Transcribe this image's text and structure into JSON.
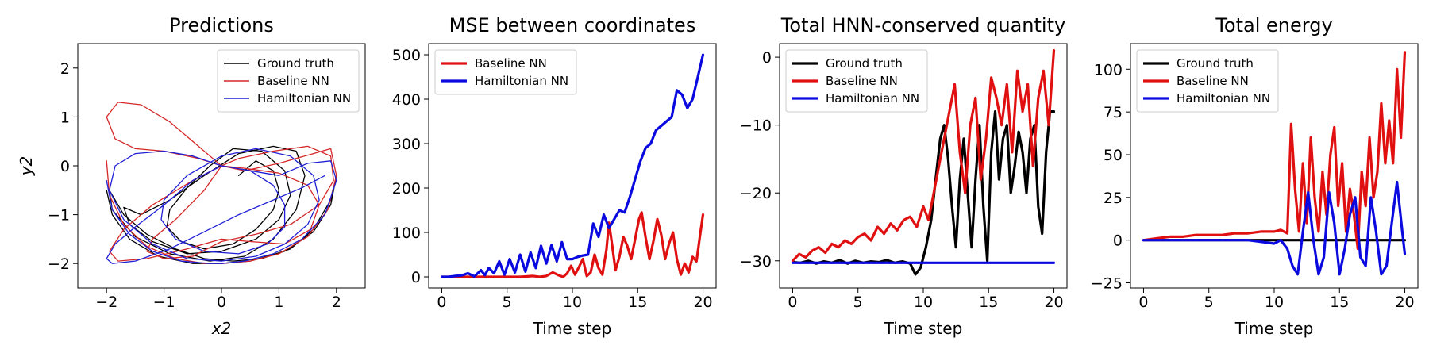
{
  "chart_data": [
    {
      "type": "line",
      "title": "Predictions",
      "xlabel": "x2",
      "ylabel": "y2",
      "xlim": [
        -2.5,
        2.5
      ],
      "ylim": [
        -2.5,
        2.5
      ],
      "xticks": [
        -2,
        -1,
        0,
        1,
        2
      ],
      "yticks": [
        -2,
        -1,
        0,
        1,
        2
      ],
      "legend_position": "top-right",
      "series": [
        {
          "name": "Ground truth",
          "color": "#000000",
          "x": [
            -2.0,
            -1.9,
            -1.6,
            -1.1,
            -0.5,
            0.0,
            0.5,
            1.1,
            1.6,
            1.9,
            2.0,
            1.9,
            1.6,
            1.2,
            0.7,
            0.2,
            -0.3,
            -0.8,
            -1.3,
            -1.7,
            -1.95,
            -1.9,
            -1.5,
            -0.9,
            -0.2,
            0.4,
            0.9,
            1.3,
            1.45,
            1.3,
            0.9,
            0.3,
            -0.3,
            -0.9,
            -1.4,
            -1.7,
            -1.6,
            -1.2,
            -0.6,
            0.0,
            0.6,
            1.0,
            1.2,
            1.1,
            0.7,
            0.2,
            -0.2,
            -0.6,
            -0.9,
            -0.95,
            -0.7,
            -0.3,
            0.2,
            0.6,
            0.9,
            1.0,
            0.9,
            0.6,
            0.3
          ],
          "y": [
            -0.5,
            -1.0,
            -1.5,
            -1.85,
            -2.0,
            -2.0,
            -1.95,
            -1.75,
            -1.35,
            -0.8,
            -0.2,
            -0.7,
            -1.3,
            -1.7,
            -1.9,
            -1.95,
            -1.9,
            -1.7,
            -1.4,
            -1.0,
            -0.5,
            -0.9,
            -1.45,
            -1.8,
            -1.95,
            -1.85,
            -1.5,
            -0.9,
            -0.2,
            0.3,
            0.4,
            0.25,
            -0.2,
            -0.7,
            -1.0,
            -0.85,
            -1.2,
            -1.55,
            -1.8,
            -1.75,
            -1.5,
            -1.1,
            -0.6,
            -0.1,
            0.3,
            0.35,
            0.0,
            -0.45,
            -0.9,
            -1.25,
            -1.55,
            -1.7,
            -1.6,
            -1.3,
            -0.9,
            -0.5,
            -0.1,
            0.1,
            -0.2
          ]
        },
        {
          "name": "Baseline NN",
          "color": "#d62728",
          "x": [
            -2.0,
            -1.95,
            -1.7,
            -1.3,
            -0.8,
            -0.3,
            0.0,
            0.5,
            1.0,
            1.5,
            1.85,
            2.0,
            1.9,
            1.6,
            1.0,
            0.4,
            0.0,
            -0.4,
            -0.9,
            -1.4,
            -1.8,
            -2.0,
            -1.85,
            -1.5,
            -1.0,
            -0.4,
            0.0,
            -0.3,
            -0.8,
            -1.2,
            -1.3,
            -1.0,
            -0.5,
            0.0,
            0.6,
            1.2,
            1.7,
            1.95,
            1.9,
            1.5,
            0.9,
            0.3,
            0.0,
            -0.5,
            -1.2,
            -1.7,
            -1.95,
            -1.8,
            -1.3,
            -0.6,
            0.0,
            0.5,
            1.1,
            1.55,
            1.7,
            1.5,
            1.0,
            0.4,
            0.0
          ],
          "y": [
            0.1,
            -0.6,
            -1.2,
            -1.65,
            -1.9,
            -2.0,
            -2.0,
            -1.95,
            -1.8,
            -1.45,
            -0.9,
            -0.2,
            0.35,
            0.25,
            0.05,
            -0.1,
            0.0,
            0.4,
            0.9,
            1.25,
            1.3,
            1.0,
            0.55,
            0.35,
            0.3,
            0.15,
            0.0,
            -0.5,
            -1.1,
            -1.5,
            -1.75,
            -1.9,
            -1.85,
            -1.55,
            -1.4,
            -1.2,
            -0.8,
            -0.3,
            0.2,
            0.4,
            0.3,
            0.15,
            0.0,
            -0.3,
            -0.8,
            -1.3,
            -1.75,
            -1.95,
            -1.9,
            -1.7,
            -1.5,
            -1.55,
            -1.6,
            -1.3,
            -0.8,
            -0.4,
            -0.15,
            -0.05,
            0.0
          ]
        },
        {
          "name": "Hamiltonian NN",
          "color": "#1f1fd6",
          "x": [
            -2.0,
            -1.9,
            -1.6,
            -1.2,
            -0.7,
            -0.2,
            0.0,
            0.4,
            0.9,
            1.4,
            1.8,
            2.0,
            1.9,
            1.5,
            1.0,
            0.5,
            0.0,
            -0.5,
            -1.0,
            -1.5,
            -1.85,
            -1.95,
            -1.7,
            -1.2,
            -0.6,
            0.0,
            0.6,
            1.1,
            1.5,
            1.7,
            1.6,
            1.2,
            0.6,
            0.0,
            -0.6,
            -1.0,
            -1.05,
            -0.8,
            -0.3,
            0.3,
            0.8,
            1.1,
            1.1,
            0.9,
            0.5,
            0.0,
            -0.5,
            -1.0,
            -1.5,
            -1.85,
            -2.0,
            -1.9,
            -1.5,
            -0.9,
            -0.3,
            0.3,
            0.9,
            1.4,
            1.8
          ],
          "y": [
            -0.3,
            -0.9,
            -1.4,
            -1.75,
            -1.95,
            -2.0,
            -2.0,
            -1.95,
            -1.8,
            -1.5,
            -1.0,
            -0.3,
            0.1,
            0.05,
            -0.2,
            -0.1,
            0.0,
            0.2,
            0.3,
            0.25,
            0.0,
            -0.5,
            -1.1,
            -1.6,
            -1.9,
            -1.95,
            -1.85,
            -1.6,
            -1.2,
            -0.7,
            -0.2,
            0.2,
            0.35,
            0.2,
            -0.2,
            -0.7,
            -1.1,
            -1.5,
            -1.75,
            -1.8,
            -1.6,
            -1.25,
            -0.8,
            -0.4,
            -0.1,
            0.0,
            -0.3,
            -0.8,
            -1.25,
            -1.6,
            -1.9,
            -2.0,
            -1.95,
            -1.7,
            -1.35,
            -1.0,
            -0.7,
            -0.45,
            -0.2
          ]
        }
      ]
    },
    {
      "type": "line",
      "title": "MSE between coordinates",
      "xlabel": "Time step",
      "ylabel": "",
      "xlim": [
        -1,
        21
      ],
      "ylim": [
        -25,
        525
      ],
      "xticks": [
        0,
        5,
        10,
        15,
        20
      ],
      "yticks": [
        0,
        100,
        200,
        300,
        400,
        500
      ],
      "legend_position": "top-left",
      "series": [
        {
          "name": "Baseline NN",
          "color": "#e01010",
          "x": [
            0,
            1,
            2,
            3,
            4,
            5,
            6,
            7,
            7.5,
            8,
            8.5,
            9,
            9.3,
            9.6,
            9.9,
            10.2,
            10.5,
            10.8,
            11.1,
            11.4,
            11.7,
            12.0,
            12.3,
            12.6,
            12.8,
            13.0,
            13.3,
            13.6,
            13.9,
            14.2,
            14.5,
            14.8,
            15.1,
            15.3,
            15.6,
            15.9,
            16.2,
            16.5,
            16.8,
            17.1,
            17.4,
            17.7,
            18.0,
            18.3,
            18.6,
            18.9,
            19.2,
            19.5,
            19.8,
            20.0
          ],
          "y": [
            0,
            0,
            0,
            0,
            0,
            0,
            0,
            2,
            0,
            2,
            10,
            3,
            0,
            8,
            25,
            5,
            22,
            40,
            2,
            10,
            50,
            20,
            5,
            60,
            122,
            80,
            15,
            45,
            90,
            70,
            40,
            85,
            130,
            145,
            90,
            40,
            80,
            130,
            95,
            40,
            75,
            100,
            40,
            5,
            30,
            10,
            45,
            35,
            100,
            140
          ]
        },
        {
          "name": "Hamiltonian NN",
          "color": "#0a0ae0",
          "x": [
            0,
            0.5,
            1,
            1.5,
            2,
            2.5,
            3,
            3.3,
            3.6,
            4,
            4.4,
            4.8,
            5.2,
            5.6,
            6.0,
            6.4,
            6.8,
            7.2,
            7.6,
            8.0,
            8.4,
            8.8,
            9.2,
            9.6,
            10.0,
            10.4,
            10.8,
            11.2,
            11.6,
            12.0,
            12.4,
            12.8,
            13.2,
            13.6,
            14.0,
            14.4,
            14.8,
            15.2,
            15.6,
            16.0,
            16.4,
            16.8,
            17.2,
            17.6,
            18.0,
            18.4,
            18.8,
            19.2,
            19.6,
            20.0
          ],
          "y": [
            0,
            0,
            2,
            3,
            8,
            1,
            15,
            4,
            20,
            8,
            35,
            5,
            40,
            10,
            50,
            12,
            55,
            20,
            70,
            30,
            72,
            35,
            78,
            40,
            40,
            45,
            48,
            50,
            120,
            90,
            140,
            110,
            130,
            150,
            145,
            180,
            220,
            260,
            290,
            300,
            330,
            340,
            350,
            360,
            420,
            410,
            380,
            400,
            450,
            500
          ]
        }
      ]
    },
    {
      "type": "line",
      "title": "Total HNN-conserved quantity",
      "xlabel": "Time step",
      "ylabel": "",
      "xlim": [
        -1,
        21
      ],
      "ylim": [
        -34,
        2
      ],
      "xticks": [
        0,
        5,
        10,
        15,
        20
      ],
      "yticks": [
        -30,
        -20,
        -10,
        0
      ],
      "legend_position": "top-left",
      "series": [
        {
          "name": "Ground truth",
          "color": "#000000",
          "x": [
            0,
            0.6,
            1.2,
            1.8,
            2.4,
            3.0,
            3.6,
            4.2,
            4.8,
            5.4,
            6.0,
            6.6,
            7.2,
            7.8,
            8.4,
            9.0,
            9.4,
            9.8,
            10.2,
            10.6,
            11.0,
            11.3,
            11.6,
            11.9,
            12.2,
            12.5,
            12.8,
            13.1,
            13.4,
            13.7,
            14.0,
            14.3,
            14.6,
            14.9,
            15.2,
            15.5,
            15.8,
            16.1,
            16.4,
            16.7,
            17.0,
            17.3,
            17.6,
            17.9,
            18.2,
            18.5,
            18.8,
            19.1,
            19.4,
            19.7,
            20.0
          ],
          "y": [
            -30.2,
            -30.3,
            -30.0,
            -30.4,
            -30.1,
            -30.3,
            -29.9,
            -30.4,
            -30.0,
            -30.3,
            -30.1,
            -30.2,
            -29.9,
            -30.3,
            -30.1,
            -30.4,
            -32,
            -31,
            -28,
            -24,
            -17,
            -12,
            -10,
            -15,
            -22,
            -28,
            -18,
            -12,
            -20,
            -28,
            -18,
            -10,
            -22,
            -30,
            -14,
            -8,
            -18,
            -12,
            -10,
            -20,
            -16,
            -11,
            -14,
            -20,
            -12,
            -10,
            -22,
            -26,
            -14,
            -8,
            -8
          ]
        },
        {
          "name": "Baseline NN",
          "color": "#e01010",
          "x": [
            0,
            0.5,
            1.0,
            1.5,
            2.0,
            2.5,
            3.0,
            3.5,
            4.0,
            4.5,
            5.0,
            5.5,
            6.0,
            6.5,
            7.0,
            7.5,
            8.0,
            8.5,
            9.0,
            9.5,
            10.0,
            10.4,
            10.8,
            11.2,
            11.6,
            12.0,
            12.4,
            12.8,
            13.2,
            13.6,
            14.0,
            14.4,
            14.8,
            15.2,
            15.6,
            16.0,
            16.4,
            16.8,
            17.2,
            17.6,
            18.0,
            18.4,
            18.8,
            19.2,
            19.6,
            20.0
          ],
          "y": [
            -30,
            -29,
            -29.5,
            -28.5,
            -28,
            -28.8,
            -27.5,
            -28,
            -27,
            -27.5,
            -26.5,
            -26,
            -27,
            -25,
            -26,
            -24.5,
            -25.5,
            -24,
            -23.5,
            -25,
            -22,
            -24,
            -20,
            -16,
            -12,
            -8,
            -4,
            -14,
            -20,
            -10,
            -6,
            -18,
            -12,
            -3,
            -6,
            -10,
            -4,
            -14,
            -2,
            -8,
            -4,
            -16,
            -6,
            -2,
            -10,
            1
          ]
        },
        {
          "name": "Hamiltonian NN",
          "color": "#0a0ae0",
          "x": [
            0,
            5,
            10,
            15,
            20
          ],
          "y": [
            -30.3,
            -30.3,
            -30.3,
            -30.3,
            -30.3
          ]
        }
      ]
    },
    {
      "type": "line",
      "title": "Total energy",
      "xlabel": "Time step",
      "ylabel": "",
      "xlim": [
        -1,
        21
      ],
      "ylim": [
        -28,
        115
      ],
      "xticks": [
        0,
        5,
        10,
        15,
        20
      ],
      "yticks": [
        -25,
        0,
        25,
        50,
        75,
        100
      ],
      "legend_position": "top-left",
      "series": [
        {
          "name": "Ground truth",
          "color": "#000000",
          "x": [
            0,
            5,
            10,
            15,
            20
          ],
          "y": [
            0,
            0,
            0,
            0,
            0
          ]
        },
        {
          "name": "Baseline NN",
          "color": "#e01010",
          "x": [
            0,
            1,
            2,
            3,
            4,
            5,
            6,
            7,
            8,
            9,
            10,
            10.5,
            11.0,
            11.3,
            11.6,
            11.9,
            12.2,
            12.5,
            12.8,
            13.1,
            13.4,
            13.7,
            14.0,
            14.3,
            14.6,
            14.9,
            15.2,
            15.5,
            15.8,
            16.1,
            16.4,
            16.7,
            17.0,
            17.3,
            17.6,
            17.9,
            18.2,
            18.5,
            18.8,
            19.1,
            19.4,
            19.7,
            20.0
          ],
          "y": [
            0,
            1,
            2,
            2,
            3,
            3,
            3,
            4,
            4,
            5,
            5,
            6,
            4,
            68,
            30,
            5,
            45,
            10,
            60,
            25,
            5,
            40,
            15,
            50,
            66,
            20,
            45,
            5,
            30,
            15,
            -5,
            40,
            20,
            60,
            25,
            40,
            80,
            45,
            70,
            45,
            100,
            60,
            110
          ]
        },
        {
          "name": "Hamiltonian NN",
          "color": "#0a0ae0",
          "x": [
            0,
            1,
            2,
            3,
            4,
            5,
            6,
            7,
            8,
            9,
            10,
            10.5,
            11.0,
            11.4,
            11.8,
            12.2,
            12.6,
            13.0,
            13.4,
            13.8,
            14.2,
            14.6,
            15.0,
            15.4,
            15.8,
            16.2,
            16.6,
            17.0,
            17.4,
            17.8,
            18.2,
            18.6,
            19.0,
            19.4,
            19.8,
            20.0
          ],
          "y": [
            0,
            0,
            0,
            0,
            0,
            0,
            0,
            0,
            0,
            -1,
            -2,
            0,
            -5,
            -15,
            -20,
            5,
            28,
            0,
            -20,
            -10,
            28,
            10,
            -20,
            -5,
            15,
            25,
            -10,
            -15,
            25,
            5,
            -20,
            -15,
            10,
            34,
            5,
            -8
          ]
        }
      ]
    }
  ]
}
